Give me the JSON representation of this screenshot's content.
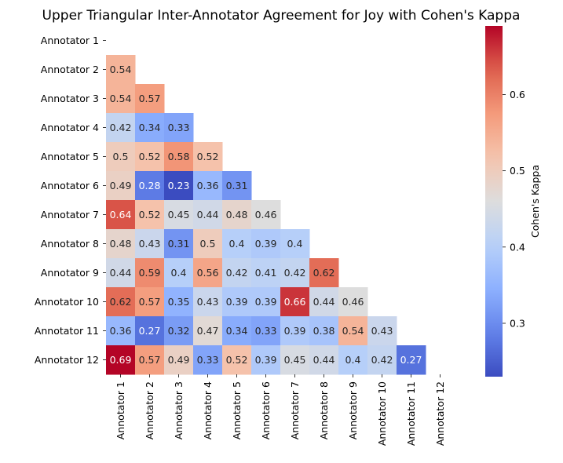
{
  "chart_data": {
    "type": "heatmap",
    "title": "Upper Triangular Inter-Annotator Agreement for Joy with Cohen's Kappa",
    "row_labels": [
      "Annotator 1",
      "Annotator 2",
      "Annotator 3",
      "Annotator 4",
      "Annotator 5",
      "Annotator 6",
      "Annotator 7",
      "Annotator 8",
      "Annotator 9",
      "Annotator 10",
      "Annotator 11",
      "Annotator 12"
    ],
    "col_labels": [
      "Annotator 1",
      "Annotator 2",
      "Annotator 3",
      "Annotator 4",
      "Annotator 5",
      "Annotator 6",
      "Annotator 7",
      "Annotator 8",
      "Annotator 9",
      "Annotator 10",
      "Annotator 11",
      "Annotator 12"
    ],
    "values": [
      [
        null,
        null,
        null,
        null,
        null,
        null,
        null,
        null,
        null,
        null,
        null,
        null
      ],
      [
        0.54,
        null,
        null,
        null,
        null,
        null,
        null,
        null,
        null,
        null,
        null,
        null
      ],
      [
        0.54,
        0.57,
        null,
        null,
        null,
        null,
        null,
        null,
        null,
        null,
        null,
        null
      ],
      [
        0.42,
        0.34,
        0.33,
        null,
        null,
        null,
        null,
        null,
        null,
        null,
        null,
        null
      ],
      [
        0.5,
        0.52,
        0.58,
        0.52,
        null,
        null,
        null,
        null,
        null,
        null,
        null,
        null
      ],
      [
        0.49,
        0.28,
        0.23,
        0.36,
        0.31,
        null,
        null,
        null,
        null,
        null,
        null,
        null
      ],
      [
        0.64,
        0.52,
        0.45,
        0.44,
        0.48,
        0.46,
        null,
        null,
        null,
        null,
        null,
        null
      ],
      [
        0.48,
        0.43,
        0.31,
        0.5,
        0.4,
        0.39,
        0.4,
        null,
        null,
        null,
        null,
        null
      ],
      [
        0.44,
        0.59,
        0.4,
        0.56,
        0.42,
        0.41,
        0.42,
        0.62,
        null,
        null,
        null,
        null
      ],
      [
        0.62,
        0.57,
        0.35,
        0.43,
        0.39,
        0.39,
        0.66,
        0.44,
        0.46,
        null,
        null,
        null
      ],
      [
        0.36,
        0.27,
        0.32,
        0.47,
        0.34,
        0.33,
        0.39,
        0.38,
        0.54,
        0.43,
        null,
        null
      ],
      [
        0.69,
        0.57,
        0.49,
        0.33,
        0.52,
        0.39,
        0.45,
        0.44,
        0.4,
        0.42,
        0.27,
        null
      ]
    ],
    "colormap": "coolwarm",
    "vmin": 0.23,
    "vmax": 0.69,
    "colorbar": {
      "label": "Cohen's Kappa",
      "ticks": [
        0.3,
        0.4,
        0.5,
        0.6
      ],
      "tick_labels": [
        "0.3",
        "0.4",
        "0.5",
        "0.6"
      ]
    }
  }
}
